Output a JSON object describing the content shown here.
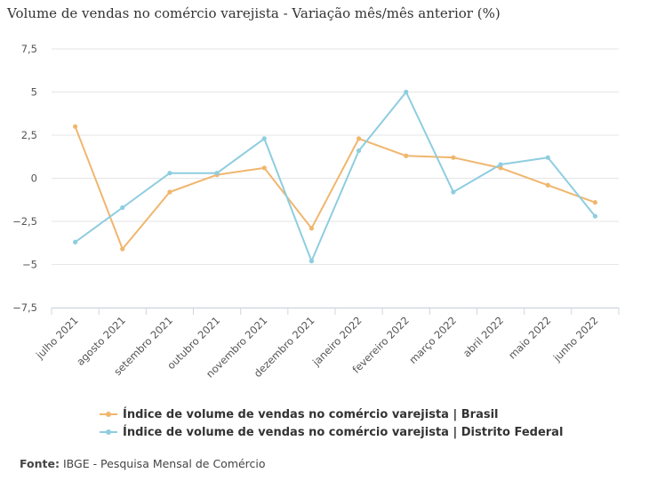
{
  "chart_data": {
    "type": "line",
    "title": "Volume de vendas no comércio varejista - Variação mês/mês anterior (%)",
    "categories": [
      "julho 2021",
      "agosto 2021",
      "setembro 2021",
      "outubro 2021",
      "novembro 2021",
      "dezembro 2021",
      "janeiro 2022",
      "fevereiro 2022",
      "março 2022",
      "abril 2022",
      "maio 2022",
      "junho 2022"
    ],
    "series": [
      {
        "name": "Índice de volume de vendas no comércio varejista | Brasil",
        "color": "#f0b66e",
        "values": [
          3.0,
          -4.1,
          -0.8,
          0.2,
          0.6,
          -2.9,
          2.3,
          1.3,
          1.2,
          0.6,
          -0.4,
          -1.4
        ]
      },
      {
        "name": "Índice de volume de vendas no comércio varejista | Distrito Federal",
        "color": "#8ecde0",
        "values": [
          -3.7,
          -1.7,
          0.3,
          0.3,
          2.3,
          -4.8,
          1.6,
          5.0,
          -0.8,
          0.8,
          1.2,
          -2.2
        ]
      }
    ],
    "yticks": [
      "7,5",
      "5",
      "2,5",
      "0",
      "−2,5",
      "−5",
      "−7,5"
    ],
    "ytick_values": [
      7.5,
      5,
      2.5,
      0,
      -2.5,
      -5,
      -7.5
    ],
    "ylim": [
      -7.5,
      7.5
    ],
    "grid": true,
    "legend_position": "bottom"
  },
  "footer": {
    "source_label": "Fonte:",
    "source_text": "IBGE - Pesquisa Mensal de Comércio"
  }
}
